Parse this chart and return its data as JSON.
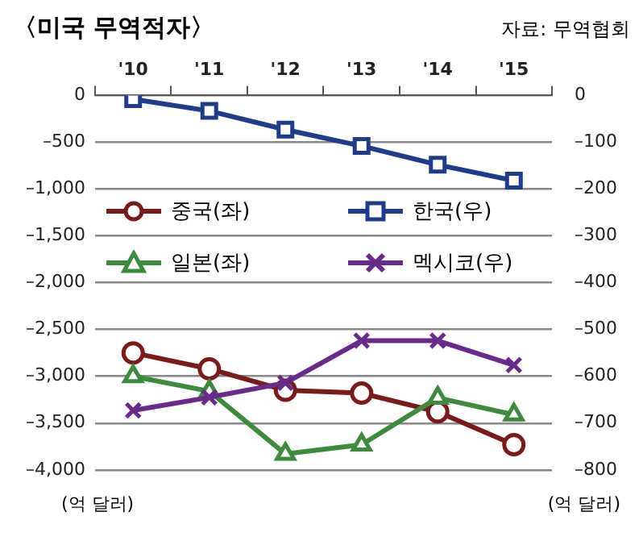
{
  "chart_data": {
    "type": "line",
    "title": "〈미국 무역적자〉",
    "annotations": [
      "자료: 무역협회"
    ],
    "ylabel": "(억 달러)",
    "y2label": "(억 달러)",
    "categories": [
      "'10",
      "'11",
      "'12",
      "'13",
      "'14",
      "'15"
    ],
    "series": [
      {
        "name": "중국(좌)",
        "color": "#7b1a1a",
        "marker": "circle",
        "values": [
          -2750,
          -2920,
          -3150,
          -3180,
          -3380,
          -3730
        ]
      },
      {
        "name": "한국(우)",
        "color": "#1f3c8c",
        "marker": "square",
        "axis": "y2",
        "values": [
          -8,
          -33,
          -73,
          -108,
          -148,
          -182
        ]
      },
      {
        "name": "일본(좌)",
        "color": "#3d8b3d",
        "marker": "triangle",
        "values": [
          -3000,
          -3160,
          -3830,
          -3730,
          -3230,
          -3410
        ]
      },
      {
        "name": "멕시코(우)",
        "color": "#6a2a8c",
        "marker": "cross",
        "axis": "y2",
        "values": [
          -673,
          -645,
          -614,
          -524,
          -524,
          -576
        ]
      }
    ],
    "ylim": [
      -4000,
      0
    ],
    "yticks": [
      0,
      {
        "value": -500,
        "label": "–500"
      },
      {
        "value": -1000,
        "label": "–1,000"
      },
      {
        "value": -1500,
        "label": "–1,500"
      },
      {
        "value": -2000,
        "label": "–2,000"
      },
      {
        "value": -2500,
        "label": "–2,500"
      },
      {
        "value": -3000,
        "label": "–3,000"
      },
      {
        "value": -3500,
        "label": "–3,500"
      },
      {
        "value": -4000,
        "label": "–4,000"
      }
    ],
    "y2lim": [
      -800,
      0
    ],
    "y2ticks": [
      0,
      {
        "value": -100,
        "label": "–100"
      },
      {
        "value": -200,
        "label": "–200"
      },
      {
        "value": -300,
        "label": "–300"
      },
      {
        "value": -400,
        "label": "–400"
      },
      {
        "value": -500,
        "label": "–500"
      },
      {
        "value": -600,
        "label": "–600"
      },
      {
        "value": -700,
        "label": "–700"
      },
      {
        "value": -800,
        "label": "–800"
      }
    ],
    "grid": "y",
    "legend": "left"
  }
}
